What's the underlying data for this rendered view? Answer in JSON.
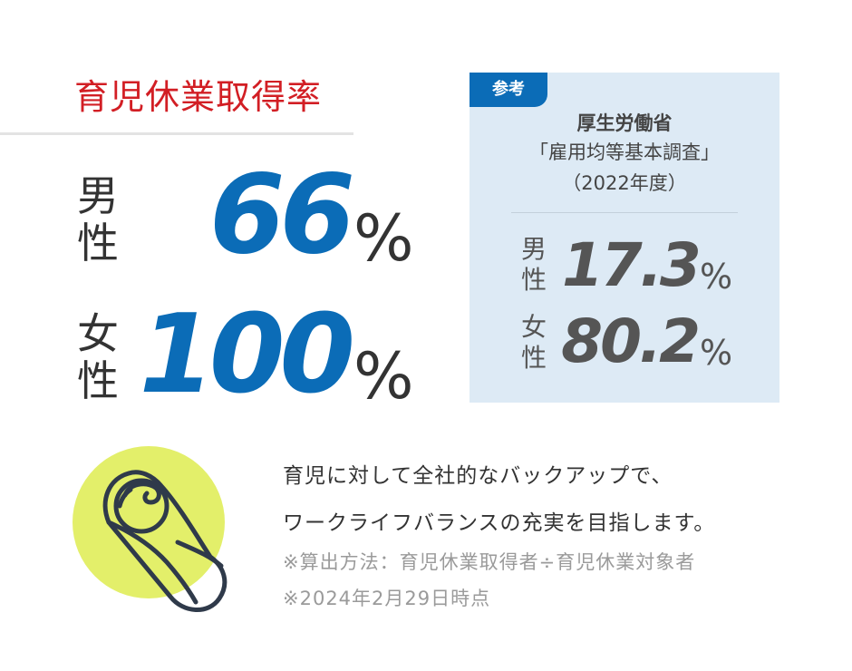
{
  "title": "育児休業取得率",
  "company": {
    "male": {
      "label_1": "男",
      "label_2": "性",
      "value": "66",
      "unit": "%"
    },
    "female": {
      "label_1": "女",
      "label_2": "性",
      "value": "100",
      "unit": "%"
    }
  },
  "reference": {
    "tag": "参考",
    "source_1": "厚生労働省",
    "source_2": "「雇用均等基本調査」",
    "source_3": "（2022年度）",
    "male": {
      "label_1": "男",
      "label_2": "性",
      "value": "17.3",
      "unit": "%"
    },
    "female": {
      "label_1": "女",
      "label_2": "性",
      "value": "80.2",
      "unit": "%"
    }
  },
  "message": {
    "line_1": "育児に対して全社的なバックアップで、",
    "line_2": "ワークライフバランスの充実を目指します。"
  },
  "notes": {
    "line_1": "※算出方法：育児休業取得者÷育児休業対象者",
    "line_2": "※2024年2月29日時点"
  },
  "colors": {
    "title": "#d21e24",
    "accent": "#0b6cb7",
    "reference_bg": "#ddeaf5",
    "icon_circle": "#e3ef6a",
    "icon_stroke": "#2f3a4a"
  },
  "icons": {
    "baby": "swaddled-baby-icon"
  }
}
